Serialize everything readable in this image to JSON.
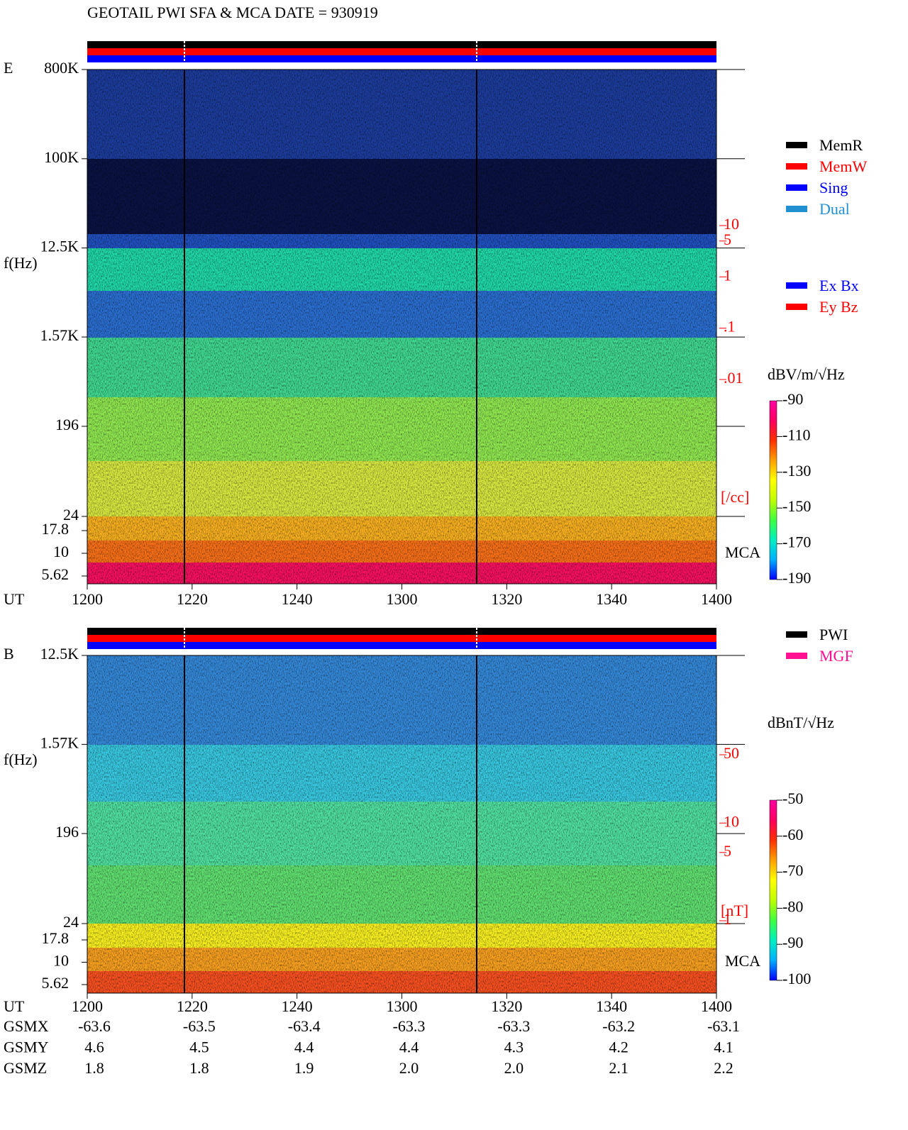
{
  "title": "GEOTAIL  PWI SFA & MCA   DATE = 930919",
  "xlabel": "UT",
  "xticks": [
    "1200",
    "1220",
    "1240",
    "1300",
    "1320",
    "1340",
    "1400"
  ],
  "orbit": {
    "labels": [
      "GSMX",
      "GSMY",
      "GSMZ"
    ],
    "rows": [
      [
        -63.6,
        -63.5,
        -63.4,
        -63.3,
        -63.3,
        -63.2,
        -63.1
      ],
      [
        4.6,
        4.5,
        4.4,
        4.4,
        4.3,
        4.2,
        4.1
      ],
      [
        1.8,
        1.8,
        1.9,
        {
          "value": 2,
          "label": "2.0"
        },
        {
          "value": 2,
          "label": "2.0"
        },
        2.1,
        2.2
      ]
    ]
  },
  "colormap": [
    "#0000ff",
    "#00b0ff",
    "#00f0c0",
    "#40ff40",
    "#c0ff00",
    "#ffff00",
    "#ffa000",
    "#ff3000",
    "#ff0060",
    "#ff00a0"
  ],
  "chart_data": [
    {
      "type": "spectrogram",
      "panel_label": "E",
      "ylabel": "f(Hz)",
      "log": true,
      "ylim": [
        24,
        800000
      ],
      "yticks": [
        {
          "value": 800000,
          "label": "800K"
        },
        {
          "value": 100000,
          "label": "100K"
        },
        {
          "value": 12500,
          "label": "12.5K"
        },
        {
          "value": 1570,
          "label": "1.57K"
        },
        196,
        24
      ],
      "mca_label": "MCA",
      "mca_ylim": [
        5.62,
        17.8
      ],
      "mca_yticks": [
        17.8,
        10,
        5.62
      ],
      "y2label": "[/cc]",
      "y2lim": [
        0.01,
        10
      ],
      "y2ticks": [
        10,
        5,
        1,
        {
          "value": 0.1,
          "label": ".1"
        },
        {
          "value": 0.01,
          "label": ".01"
        }
      ],
      "colorbar": {
        "label": "dBV/m/√Hz",
        "zlim": [
          -190,
          -90
        ],
        "zticks": [
          -90,
          -110,
          -130,
          -150,
          -170,
          -190
        ]
      },
      "legend": [
        {
          "name": "MemR",
          "color": "#000000"
        },
        {
          "name": "MemW",
          "color": "#ff0000"
        },
        {
          "name": "Sing",
          "color": "#0000ff"
        },
        {
          "name": "Dual",
          "color": "#2090d0"
        }
      ],
      "legend2": [
        {
          "name": "Ex Bx",
          "color": "#0000ff"
        },
        {
          "name": "Ey Bz",
          "color": "#ff0000"
        }
      ]
    },
    {
      "type": "spectrogram",
      "panel_label": "B",
      "ylabel": "f(Hz)",
      "log": true,
      "ylim": [
        24,
        12500
      ],
      "yticks": [
        {
          "value": 12500,
          "label": "12.5K"
        },
        {
          "value": 1570,
          "label": "1.57K"
        },
        196,
        24
      ],
      "mca_label": "MCA",
      "mca_ylim": [
        5.62,
        17.8
      ],
      "mca_yticks": [
        17.8,
        10,
        5.62
      ],
      "y2label": "[nT]",
      "y2lim": [
        1,
        50
      ],
      "y2ticks": [
        50,
        10,
        5,
        1
      ],
      "colorbar": {
        "label": "dBnT/√Hz",
        "zlim": [
          -100,
          -50
        ],
        "zticks": [
          -50,
          -60,
          -70,
          -80,
          -90,
          -100
        ]
      },
      "legend": [
        {
          "name": "PWI",
          "color": "#000000"
        },
        {
          "name": "MGF",
          "color": "#ff1090"
        }
      ]
    }
  ]
}
